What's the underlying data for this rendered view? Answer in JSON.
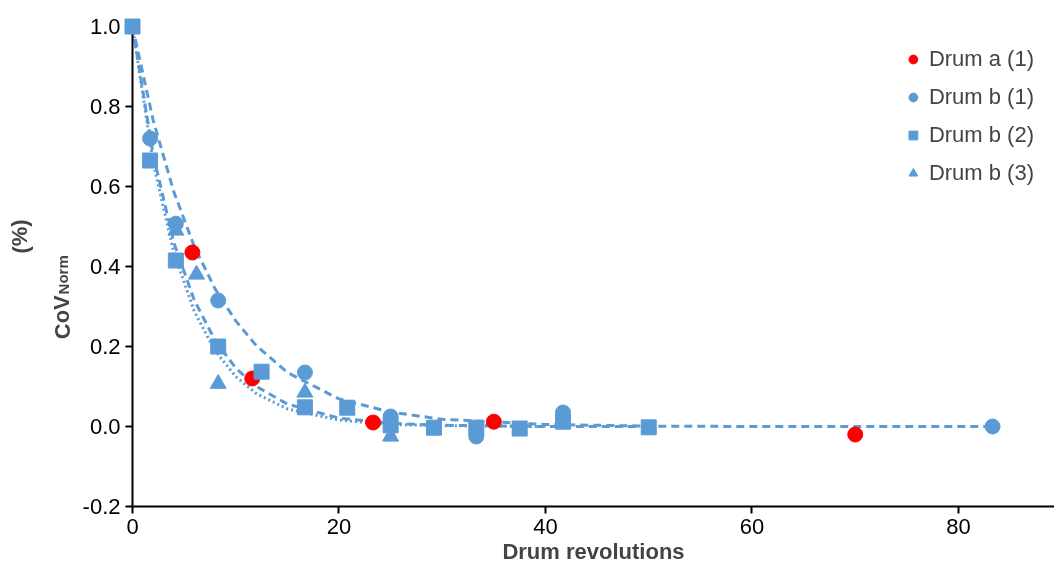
{
  "chart_data": {
    "type": "scatter",
    "xlabel": "Drum revolutions",
    "ylabel": "CoV$_{Norm}$ (%)",
    "xlim": [
      0,
      89.3
    ],
    "ylim": [
      -0.2,
      1.0
    ],
    "xticks": [
      0,
      20,
      40,
      60,
      80
    ],
    "yticks": [
      {
        "value": -0.2,
        "label": "-0.2"
      },
      {
        "value": 0,
        "label": "0.0"
      },
      {
        "value": 0.2,
        "label": "0.2"
      },
      {
        "value": 0.4,
        "label": "0.4"
      },
      {
        "value": 0.6,
        "label": "0.6"
      },
      {
        "value": 0.8,
        "label": "0.8"
      },
      {
        "value": 1.0,
        "label": "1.0"
      }
    ],
    "grid": false,
    "legend": "top right",
    "series": [
      {
        "type": "line",
        "color": "#5b9bd5",
        "line_style": "dashed",
        "x": [
          0,
          2,
          4,
          6,
          8,
          10,
          12,
          15,
          20,
          25,
          30,
          40,
          50,
          60,
          83.3
        ],
        "values": [
          1,
          0.766,
          0.587,
          0.449,
          0.344,
          0.264,
          0.202,
          0.135,
          0.069,
          0.036,
          0.018,
          0.005,
          0.001,
          0,
          0
        ]
      },
      {
        "type": "line",
        "color": "#5b9bd5",
        "line_style": "dashed",
        "x": [
          0,
          2,
          4,
          6,
          8,
          10,
          12,
          15,
          20,
          25,
          30,
          40,
          50
        ],
        "values": [
          1,
          0.68,
          0.46,
          0.315,
          0.215,
          0.146,
          0.1,
          0.056,
          0.021,
          0.008,
          0.003,
          0,
          0
        ]
      },
      {
        "type": "line",
        "color": "#5b9bd5",
        "line_style": "dotted",
        "x": [
          0,
          2,
          4,
          6,
          8,
          10,
          12,
          15,
          20,
          25,
          30,
          40
        ],
        "values": [
          1,
          0.66,
          0.435,
          0.287,
          0.189,
          0.125,
          0.082,
          0.044,
          0.016,
          0.005,
          0.002,
          0
        ]
      },
      {
        "name": "Drum a (1)",
        "marker": "circle",
        "color": "#ff0000",
        "x": [
          5.8,
          11.6,
          23.3,
          35,
          70
        ],
        "values": [
          0.435,
          0.12,
          0.01,
          0.012,
          -0.02
        ]
      },
      {
        "name": "Drum b (1)",
        "marker": "circle",
        "color": "#5b9bd5",
        "x": [
          1.7,
          4.2,
          8.3,
          16.7,
          25,
          33.3,
          41.7,
          83.3
        ],
        "values": [
          0.72,
          0.507,
          0.315,
          0.135,
          0.025,
          -0.025,
          0.035,
          0
        ]
      },
      {
        "name": "Drum b (3)",
        "marker": "triangle",
        "color": "#5b9bd5",
        "x": [
          4.2,
          6.2,
          8.3,
          16.7,
          25
        ],
        "values": [
          0.49,
          0.38,
          0.107,
          0.085,
          -0.025
        ]
      },
      {
        "name": "Drum b (2)",
        "marker": "square",
        "color": "#5b9bd5",
        "x": [
          0,
          1.7,
          4.2,
          8.3,
          12.5,
          16.7,
          20.8,
          25,
          29.2,
          33.3,
          37.5,
          41.7,
          50
        ],
        "values": [
          1,
          0.665,
          0.415,
          0.2,
          0.137,
          0.048,
          0.047,
          0.003,
          -0.003,
          -0.003,
          -0.005,
          0.012,
          -0.002
        ]
      }
    ]
  }
}
